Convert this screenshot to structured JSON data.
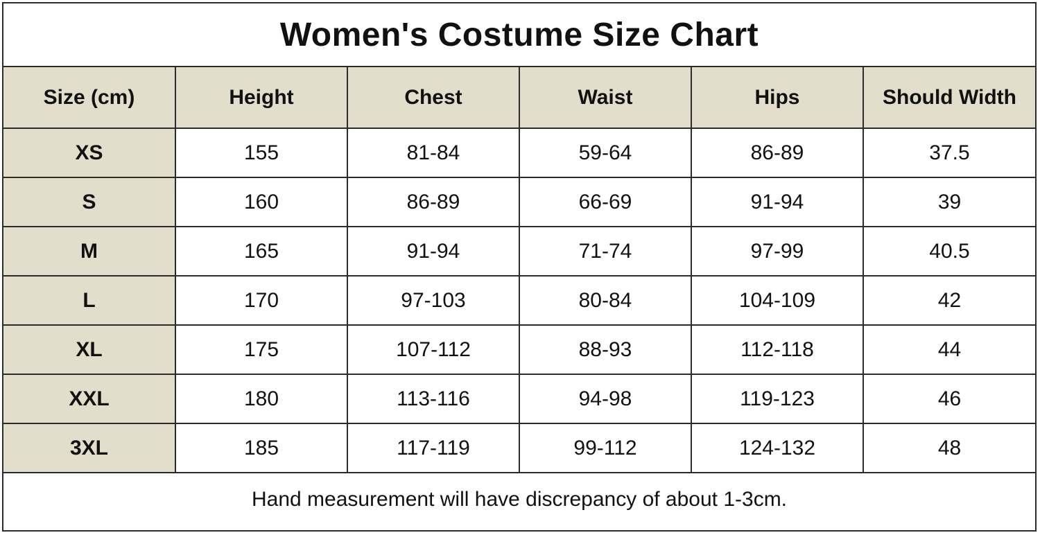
{
  "title": "Women's Costume Size Chart",
  "table": {
    "headers": [
      "Size (cm)",
      "Height",
      "Chest",
      "Waist",
      "Hips",
      "Should Width"
    ],
    "rows": [
      [
        "XS",
        "155",
        "81-84",
        "59-64",
        "86-89",
        "37.5"
      ],
      [
        "S",
        "160",
        "86-89",
        "66-69",
        "91-94",
        "39"
      ],
      [
        "M",
        "165",
        "91-94",
        "71-74",
        "97-99",
        "40.5"
      ],
      [
        "L",
        "170",
        "97-103",
        "80-84",
        "104-109",
        "42"
      ],
      [
        "XL",
        "175",
        "107-112",
        "88-93",
        "112-118",
        "44"
      ],
      [
        "XXL",
        "180",
        "113-116",
        "94-98",
        "119-123",
        "46"
      ],
      [
        "3XL",
        "185",
        "117-119",
        "99-112",
        "124-132",
        "48"
      ]
    ]
  },
  "footer_note": "Hand measurement will have discrepancy of about 1-3cm.",
  "colors": {
    "header_bg": "#e3ddcb",
    "border": "#2b2b2b"
  }
}
